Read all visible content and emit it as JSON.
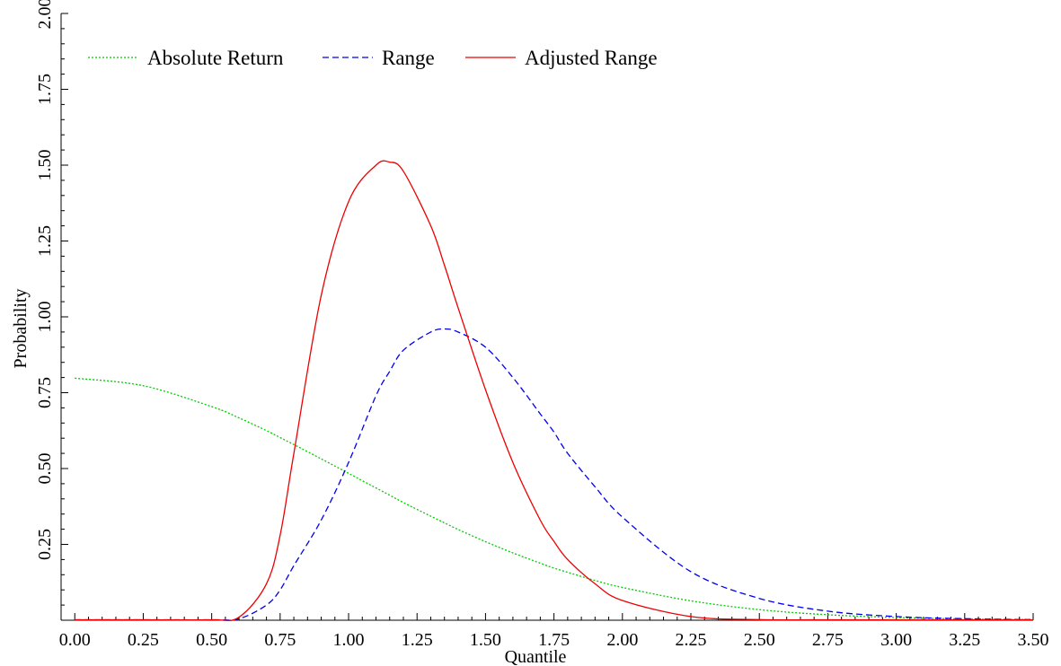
{
  "chart_data": {
    "type": "line",
    "title": "",
    "xlabel": "Quantile",
    "ylabel": "Probability",
    "xlim": [
      -0.05,
      3.5
    ],
    "ylim": [
      0,
      2.0
    ],
    "xticks": [
      "0.00",
      "0.25",
      "0.50",
      "0.75",
      "1.00",
      "1.25",
      "1.50",
      "1.75",
      "2.00",
      "2.25",
      "2.50",
      "2.75",
      "3.00",
      "3.25",
      "3.50"
    ],
    "yticks": [
      "0.25",
      "0.50",
      "0.75",
      "1.00",
      "1.25",
      "1.50",
      "1.75",
      "2.00"
    ],
    "grid": false,
    "legend_position": "top-left",
    "x": [
      0.0,
      0.25,
      0.5,
      0.6,
      0.7,
      0.75,
      0.8,
      0.9,
      1.0,
      1.1,
      1.15,
      1.2,
      1.3,
      1.35,
      1.4,
      1.5,
      1.6,
      1.7,
      1.75,
      1.8,
      1.9,
      2.0,
      2.25,
      2.5,
      2.75,
      3.0,
      3.25,
      3.5
    ],
    "series": [
      {
        "name": "Absolute Return",
        "color": "#00cc00",
        "dash": "dotted",
        "values": [
          0.798,
          0.773,
          0.704,
          0.667,
          0.625,
          0.602,
          0.579,
          0.532,
          0.484,
          0.436,
          0.412,
          0.388,
          0.343,
          0.321,
          0.299,
          0.259,
          0.222,
          0.188,
          0.172,
          0.158,
          0.131,
          0.108,
          0.064,
          0.035,
          0.018,
          0.009,
          0.004,
          0.002
        ]
      },
      {
        "name": "Range",
        "color": "#0000ee",
        "dash": "dashed",
        "values": [
          0.0,
          0.0,
          0.0,
          0.005,
          0.05,
          0.1,
          0.18,
          0.33,
          0.52,
          0.74,
          0.82,
          0.89,
          0.95,
          0.96,
          0.95,
          0.9,
          0.8,
          0.68,
          0.62,
          0.55,
          0.44,
          0.34,
          0.16,
          0.072,
          0.03,
          0.012,
          0.005,
          0.002
        ]
      },
      {
        "name": "Adjusted Range",
        "color": "#ee0000",
        "dash": "solid",
        "values": [
          0.0,
          0.0,
          0.0,
          0.01,
          0.12,
          0.28,
          0.55,
          1.07,
          1.38,
          1.5,
          1.51,
          1.48,
          1.3,
          1.17,
          1.03,
          0.76,
          0.52,
          0.33,
          0.26,
          0.2,
          0.12,
          0.065,
          0.012,
          0.002,
          0.0,
          0.0,
          0.0,
          0.0
        ]
      }
    ]
  }
}
